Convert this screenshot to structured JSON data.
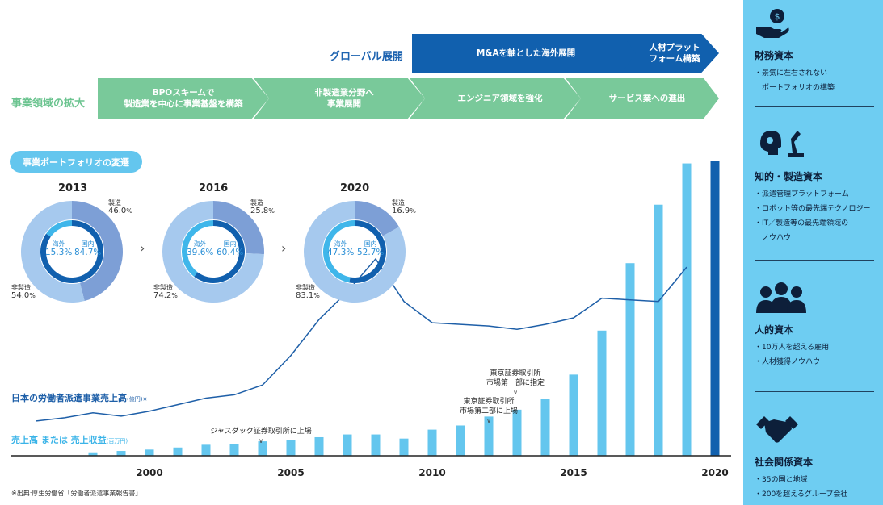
{
  "global_row": {
    "label": "グローバル展開",
    "steps": [
      "M&Aを軸とした海外展開",
      "人材プラット\nフォーム構築"
    ]
  },
  "business_row": {
    "label": "事業領域の拡大",
    "steps": [
      "BPOスキームで\n製造業を中心に事業基盤を構築",
      "非製造業分野へ\n事業展開",
      "エンジニア領域を強化",
      "サービス業への進出"
    ]
  },
  "portfolio": {
    "title": "事業ポートフォリオの変遷",
    "donuts": [
      {
        "year": "2013",
        "mfg_label": "製造",
        "mfg": "46.0",
        "nonmfg_label": "非製造",
        "nonmfg": "54.0",
        "overseas_label": "海外",
        "overseas": "15.3",
        "domestic_label": "国内",
        "domestic": "84.7",
        "unit": "%"
      },
      {
        "year": "2016",
        "mfg_label": "製造",
        "mfg": "25.8",
        "nonmfg_label": "非製造",
        "nonmfg": "74.2",
        "overseas_label": "海外",
        "overseas": "39.6",
        "domestic_label": "国内",
        "domestic": "60.4",
        "unit": "%"
      },
      {
        "year": "2020",
        "mfg_label": "製造",
        "mfg": "16.9",
        "nonmfg_label": "非製造",
        "nonmfg": "83.1",
        "overseas_label": "海外",
        "overseas": "47.3",
        "domestic_label": "国内",
        "domestic": "52.7",
        "unit": "%"
      }
    ],
    "chevron": "›"
  },
  "chart_data": {
    "type": "bar",
    "x_ticks": [
      "2000",
      "2005",
      "2010",
      "2015",
      "2020"
    ],
    "bar_series": {
      "name": "売上高 または 売上収益",
      "unit": "(百万円)",
      "color": "#64c6ee",
      "highlight_color": "#1160ae",
      "x": [
        1998,
        1999,
        2000,
        2001,
        2002,
        2003,
        2004,
        2005,
        2006,
        2007,
        2008,
        2009,
        2010,
        2011,
        2012,
        2013,
        2014,
        2015,
        2016,
        2017,
        2018,
        2019,
        2020
      ],
      "values": [
        5,
        7,
        9,
        12,
        16,
        17,
        21,
        23,
        27,
        31,
        31,
        25,
        38,
        44,
        57,
        67,
        83,
        118,
        182,
        280,
        365,
        425,
        428
      ]
    },
    "line_series": {
      "name": "日本の労働者派遣事業売上高",
      "unit": "(億円)※",
      "color": "#1e5fa8",
      "x": [
        1996,
        1997,
        1998,
        1999,
        2000,
        2001,
        2002,
        2003,
        2004,
        2005,
        2006,
        2007,
        2008,
        2009,
        2010,
        2011,
        2012,
        2013,
        2014,
        2015,
        2016,
        2017,
        2018,
        2019
      ],
      "values": [
        3,
        5,
        8,
        6,
        9,
        13,
        17,
        19,
        25,
        43,
        65,
        82,
        102,
        76,
        63,
        62,
        61,
        59,
        62,
        66,
        78,
        77,
        76,
        97
      ]
    },
    "annotations": [
      {
        "x": 2004,
        "text": "ジャスダック証券取引所に上場",
        "marker": "∨"
      },
      {
        "x": 2012,
        "text": "東京証券取引所\n市場第二部に上場",
        "marker": "∨"
      },
      {
        "x": 2013,
        "text": "東京証券取引所\n市場第一部に指定",
        "marker": "∨"
      }
    ]
  },
  "source_note": "※出典:厚生労働省「労働者派遣事業報告書」",
  "capitals": [
    {
      "title": "財務資本",
      "items": [
        "・景気に左右されない\n　ポートフォリオの構築"
      ],
      "icon": "money-hand-icon"
    },
    {
      "title": "知的・製造資本",
      "items": [
        "・派遣管理プラットフォーム",
        "・ロボット等の最先端テクノロジー",
        "・IT／製造等の最先端領域の\n　ノウハウ"
      ],
      "icon": "brain-robot-icon"
    },
    {
      "title": "人的資本",
      "items": [
        "・10万人を超える雇用",
        "・人材獲得ノウハウ"
      ],
      "icon": "people-icon"
    },
    {
      "title": "社会関係資本",
      "items": [
        "・35の国と地域",
        "・200を超えるグループ会社"
      ],
      "icon": "handshake-icon"
    }
  ]
}
